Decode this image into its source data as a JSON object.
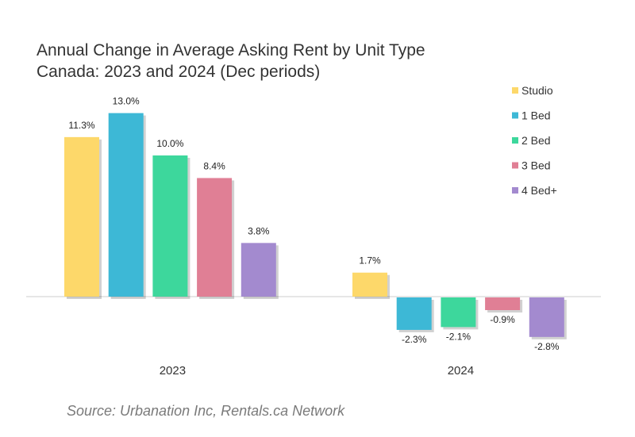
{
  "chart_data": {
    "type": "bar",
    "title": "Annual Change in Average Asking Rent by Unit Type",
    "subtitle": "Canada: 2023 and 2024 (Dec periods)",
    "categories": [
      "2023",
      "2024"
    ],
    "series": [
      {
        "name": "Studio",
        "values": [
          11.3,
          1.7
        ],
        "labels": [
          "11.3%",
          "1.7%"
        ],
        "color": "#FDD86A"
      },
      {
        "name": "1 Bed",
        "values": [
          13.0,
          -2.3
        ],
        "labels": [
          "13.0%",
          "-2.3%"
        ],
        "color": "#3DB8D6"
      },
      {
        "name": "2 Bed",
        "values": [
          10.0,
          -2.1
        ],
        "labels": [
          "10.0%",
          "-2.1%"
        ],
        "color": "#3DD79C"
      },
      {
        "name": "3 Bed",
        "values": [
          8.4,
          -0.9
        ],
        "labels": [
          "8.4%",
          "-0.9%"
        ],
        "color": "#E07F95"
      },
      {
        "name": "4 Bed+",
        "values": [
          3.8,
          -2.8
        ],
        "labels": [
          "3.8%",
          "-2.8%"
        ],
        "color": "#A38ACF"
      }
    ],
    "ylim": [
      -3,
      13
    ],
    "grid": false,
    "legend": "top-right",
    "source": "Source: Urbanation Inc, Rentals.ca Network"
  }
}
